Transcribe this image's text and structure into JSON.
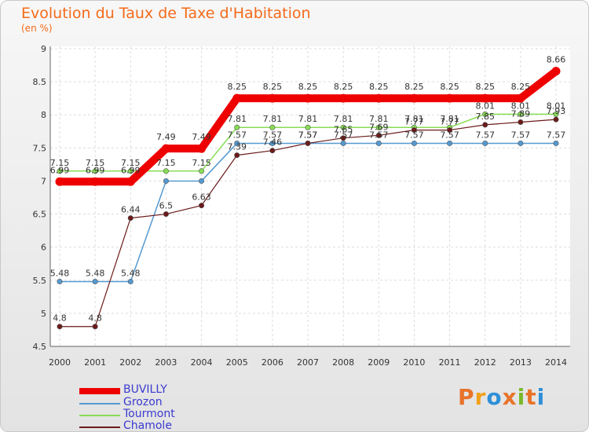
{
  "header": {
    "title": "Evolution du Taux de Taxe d'Habitation",
    "subtitle": "(en %)"
  },
  "logo": {
    "text": "Proxiti",
    "colors": [
      "#e8732a",
      "#f0a01a",
      "#2e8fd8",
      "#e8732a",
      "#7ab82a",
      "#e8732a",
      "#2e8fd8"
    ]
  },
  "chart_data": {
    "type": "line",
    "title": "Evolution du Taux de Taxe d'Habitation",
    "ylabel": "(en %)",
    "xlabel": "",
    "ylim": [
      4.5,
      9
    ],
    "yticks": [
      "4.5",
      "5",
      "5.5",
      "6",
      "6.5",
      "7",
      "7.5",
      "8",
      "8.5",
      "9"
    ],
    "categories": [
      "2000",
      "2001",
      "2002",
      "2003",
      "2004",
      "2005",
      "2006",
      "2007",
      "2008",
      "2009",
      "2010",
      "2011",
      "2012",
      "2013",
      "2014"
    ],
    "grid": true,
    "legend_position": "bottom-left",
    "series": [
      {
        "name": "BUVILLY",
        "color": "#ee0000",
        "values": [
          6.99,
          6.99,
          6.99,
          7.49,
          7.49,
          8.25,
          8.25,
          8.25,
          8.25,
          8.25,
          8.25,
          8.25,
          8.25,
          8.25,
          8.66
        ],
        "labels": [
          "6.99",
          "6.99",
          "6.99",
          "7.49",
          "7.49",
          "8.25",
          "8.25",
          "8.25",
          "8.25",
          "8.25",
          "8.25",
          "8.25",
          "8.25",
          "8.25",
          "8.66"
        ]
      },
      {
        "name": "Grozon",
        "color": "#5599d0",
        "values": [
          5.48,
          5.48,
          5.48,
          7.0,
          7.0,
          7.57,
          7.57,
          7.57,
          7.57,
          7.57,
          7.57,
          7.57,
          7.57,
          7.57,
          7.57
        ],
        "labels": [
          "5.48",
          "5.48",
          "5.48",
          "",
          "",
          "7.57",
          "7.57",
          "7.57",
          "7.57",
          "7.57",
          "7.57",
          "7.57",
          "7.57",
          "7.57",
          "7.57"
        ]
      },
      {
        "name": "Tourmont",
        "color": "#88dd55",
        "values": [
          7.15,
          7.15,
          7.15,
          7.15,
          7.15,
          7.81,
          7.81,
          7.81,
          7.81,
          7.81,
          7.81,
          7.81,
          8.01,
          8.01,
          8.01
        ],
        "labels": [
          "7.15",
          "7.15",
          "7.15",
          "7.15",
          "7.15",
          "7.81",
          "7.81",
          "7.81",
          "7.81",
          "7.81",
          "7.81",
          "7.81",
          "8.01",
          "8.01",
          "8.01"
        ]
      },
      {
        "name": "Chamole",
        "color": "#6b1a1a",
        "values": [
          4.8,
          4.8,
          6.44,
          6.5,
          6.63,
          7.39,
          7.46,
          7.57,
          7.65,
          7.69,
          7.77,
          7.77,
          7.85,
          7.89,
          7.93
        ],
        "labels": [
          "4.8",
          "4.8",
          "6.44",
          "6.5",
          "6.63",
          "7.39",
          "7.46",
          "7.57",
          "7.65",
          "7.69",
          "7.77",
          "7.77",
          "7.85",
          "7.89",
          "7.93"
        ]
      }
    ]
  }
}
